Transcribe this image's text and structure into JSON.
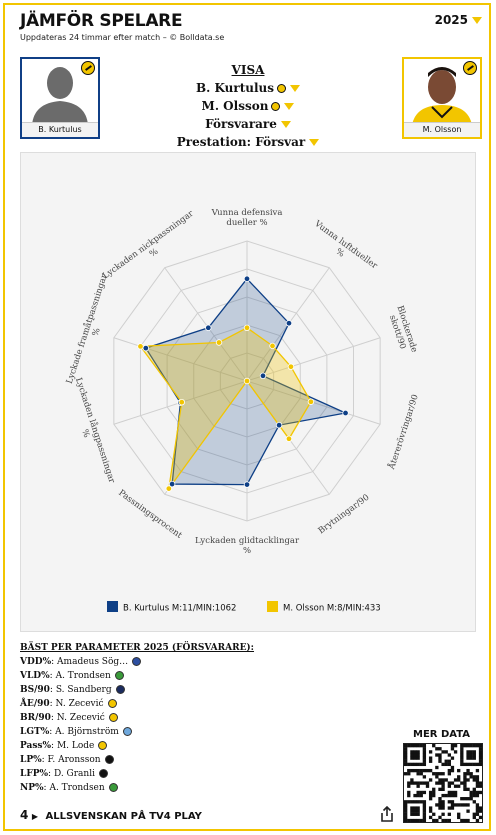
{
  "header": {
    "title": "JÄMFÖR SPELARE",
    "subtitle": "Uppdateras 24 timmar efter match – © Bolldata.se",
    "year": "2025"
  },
  "players": {
    "left_name": "B. Kurtulus",
    "right_name": "M. Olsson"
  },
  "visa": {
    "heading": "VISA",
    "player1": "B. Kurtulus",
    "player2": "M. Olsson",
    "position": "Försvarare",
    "prestation": "Prestation: Försvar"
  },
  "chart_data": {
    "type": "radar",
    "axes": [
      "Vunna defensiva dueller %",
      "Vunna luftdueller %",
      "Blockerade skott/90",
      "Återerövringar/90",
      "Brytningar/90",
      "Lyckaden glidtacklingar %",
      "Passningsprocent",
      "Lyckaden långpassningar %",
      "Lyckade framåtpassningar %",
      "Lyckaden nickpassningar %"
    ],
    "range": [
      0,
      100
    ],
    "grid_rings": 5,
    "series": [
      {
        "name": "B. Kurtulus M:11/MIN:1062",
        "color": "#0e3f86",
        "values": [
          73,
          51,
          12,
          74,
          39,
          74,
          91,
          50,
          76,
          47
        ]
      },
      {
        "name": "M. Olsson M:8/MIN:433",
        "color": "#f2c500",
        "values": [
          38,
          31,
          33,
          48,
          51,
          0,
          95,
          49,
          80,
          34
        ]
      }
    ],
    "legend_position": "bottom"
  },
  "best": {
    "heading": "BÄST PER PARAMETER 2025 (FÖRSVARARE):",
    "rows": [
      {
        "key": "VDD%",
        "value": ": Amadeus Sög…",
        "color": "#2d4fa0"
      },
      {
        "key": "VLD%",
        "value": ": A. Trondsen",
        "color": "#3a9a3a"
      },
      {
        "key": "BS/90",
        "value": ": S. Sandberg",
        "color": "#1b2b5e"
      },
      {
        "key": "ÅE/90",
        "value": ": N. Zecević",
        "color": "#f2c500"
      },
      {
        "key": "BR/90",
        "value": ": N. Zecević",
        "color": "#f2c500"
      },
      {
        "key": "LGT%",
        "value": ": A. Björnström",
        "color": "#6fa8dc"
      },
      {
        "key": "Pass%",
        "value": ": M. Lode",
        "color": "#f2c500"
      },
      {
        "key": "LP%",
        "value": ": F. Aronsson",
        "color": "#111111"
      },
      {
        "key": "LFP%",
        "value": ": D. Granli",
        "color": "#111111"
      },
      {
        "key": "NP%",
        "value": ": A. Trondsen",
        "color": "#3a9a3a"
      }
    ]
  },
  "more_data": "MER DATA",
  "footer": {
    "number": "4",
    "label": "ALLSVENSKAN PÅ TV4 PLAY"
  }
}
